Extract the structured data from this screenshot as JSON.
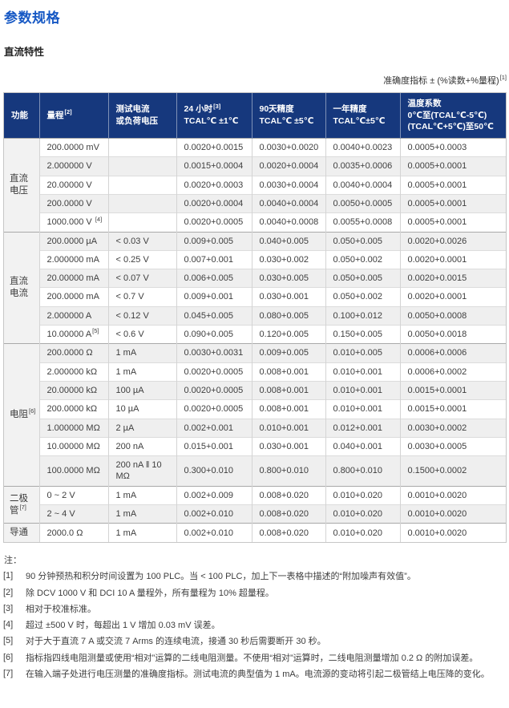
{
  "colors": {
    "title_blue": "#1658c4",
    "table_header_bg": "#16387d",
    "stripe_gray": "#efefef",
    "function_col_bg": "#f2f2f2"
  },
  "page": {
    "title": "参数规格",
    "section_title": "直流特性",
    "accuracy_note": "准确度指标 ± (%读数+%量程)",
    "accuracy_note_sup": "[1]"
  },
  "table": {
    "columns": [
      {
        "id": "function",
        "lines": [
          "功能"
        ],
        "sup": "",
        "supLine": 0
      },
      {
        "id": "range",
        "lines": [
          "量程"
        ],
        "sup": "[2]",
        "supLine": 0
      },
      {
        "id": "test-current",
        "lines": [
          "测试电流",
          "或负荷电压"
        ],
        "sup": "",
        "supLine": 0
      },
      {
        "id": "24h",
        "lines": [
          "24 小时",
          "TCAL℃ ±1℃"
        ],
        "sup": "[3]",
        "supLine": 0
      },
      {
        "id": "90day",
        "lines": [
          "90天精度",
          "TCAL℃ ±5℃"
        ],
        "sup": "",
        "supLine": 0
      },
      {
        "id": "1year",
        "lines": [
          "一年精度",
          "TCAL℃±5℃"
        ],
        "sup": "",
        "supLine": 0
      },
      {
        "id": "temp-coeff",
        "lines": [
          "温度系数",
          "0℃至(TCAL℃-5℃)",
          "(TCAL℃+5℃)至50℃"
        ],
        "sup": "",
        "supLine": 0
      }
    ],
    "groups": [
      {
        "function": "直流\n电压",
        "sup": "",
        "rows": [
          {
            "range": "200.0000 mV",
            "range_sup": "",
            "test": "",
            "h24": "0.0020+0.0015",
            "d90": "0.0030+0.0020",
            "y1": "0.0040+0.0023",
            "tc": "0.0005+0.0003"
          },
          {
            "range": "2.000000 V",
            "range_sup": "",
            "test": "",
            "h24": "0.0015+0.0004",
            "d90": "0.0020+0.0004",
            "y1": "0.0035+0.0006",
            "tc": "0.0005+0.0001"
          },
          {
            "range": "20.00000 V",
            "range_sup": "",
            "test": "",
            "h24": "0.0020+0.0003",
            "d90": "0.0030+0.0004",
            "y1": "0.0040+0.0004",
            "tc": "0.0005+0.0001"
          },
          {
            "range": "200.0000 V",
            "range_sup": "",
            "test": "",
            "h24": "0.0020+0.0004",
            "d90": "0.0040+0.0004",
            "y1": "0.0050+0.0005",
            "tc": "0.0005+0.0001"
          },
          {
            "range": "1000.000 V ",
            "range_sup": "[4]",
            "test": "",
            "h24": "0.0020+0.0005",
            "d90": "0.0040+0.0008",
            "y1": "0.0055+0.0008",
            "tc": "0.0005+0.0001"
          }
        ]
      },
      {
        "function": "直流\n电流",
        "sup": "",
        "rows": [
          {
            "range": "200.0000 µA",
            "range_sup": "",
            "test": "< 0.03 V",
            "h24": "0.009+0.005",
            "d90": "0.040+0.005",
            "y1": "0.050+0.005",
            "tc": "0.0020+0.0026"
          },
          {
            "range": "2.000000 mA",
            "range_sup": "",
            "test": "< 0.25 V",
            "h24": "0.007+0.001",
            "d90": "0.030+0.002",
            "y1": "0.050+0.002",
            "tc": "0.0020+0.0001"
          },
          {
            "range": "20.00000 mA",
            "range_sup": "",
            "test": "< 0.07 V",
            "h24": "0.006+0.005",
            "d90": "0.030+0.005",
            "y1": "0.050+0.005",
            "tc": "0.0020+0.0015"
          },
          {
            "range": "200.0000 mA",
            "range_sup": "",
            "test": "< 0.7 V",
            "h24": "0.009+0.001",
            "d90": "0.030+0.001",
            "y1": "0.050+0.002",
            "tc": "0.0020+0.0001"
          },
          {
            "range": "2.000000 A",
            "range_sup": "",
            "test": "< 0.12 V",
            "h24": "0.045+0.005",
            "d90": "0.080+0.005",
            "y1": "0.100+0.012",
            "tc": "0.0050+0.0008"
          },
          {
            "range": "10.00000 A",
            "range_sup": "[5]",
            "test": "< 0.6 V",
            "h24": "0.090+0.005",
            "d90": "0.120+0.005",
            "y1": "0.150+0.005",
            "tc": "0.0050+0.0018"
          }
        ]
      },
      {
        "function": "电阻",
        "sup": "[6]",
        "rows": [
          {
            "range": "200.0000 Ω",
            "range_sup": "",
            "test": "1 mA",
            "h24": "0.0030+0.0031",
            "d90": "0.009+0.005",
            "y1": "0.010+0.005",
            "tc": "0.0006+0.0006"
          },
          {
            "range": "2.000000 kΩ",
            "range_sup": "",
            "test": "1 mA",
            "h24": "0.0020+0.0005",
            "d90": "0.008+0.001",
            "y1": "0.010+0.001",
            "tc": "0.0006+0.0002"
          },
          {
            "range": "20.00000 kΩ",
            "range_sup": "",
            "test": "100 µA",
            "h24": "0.0020+0.0005",
            "d90": "0.008+0.001",
            "y1": "0.010+0.001",
            "tc": "0.0015+0.0001"
          },
          {
            "range": "200.0000 kΩ",
            "range_sup": "",
            "test": "10 µA",
            "h24": "0.0020+0.0005",
            "d90": "0.008+0.001",
            "y1": "0.010+0.001",
            "tc": "0.0015+0.0001"
          },
          {
            "range": "1.000000 MΩ",
            "range_sup": "",
            "test": "2 µA",
            "h24": "0.002+0.001",
            "d90": "0.010+0.001",
            "y1": "0.012+0.001",
            "tc": "0.0030+0.0002"
          },
          {
            "range": "10.00000 MΩ",
            "range_sup": "",
            "test": "200 nA",
            "h24": "0.015+0.001",
            "d90": "0.030+0.001",
            "y1": "0.040+0.001",
            "tc": "0.0030+0.0005"
          },
          {
            "range": "100.0000 MΩ",
            "range_sup": "",
            "test": "200 nA ‖ 10 MΩ",
            "h24": "0.300+0.010",
            "d90": "0.800+0.010",
            "y1": "0.800+0.010",
            "tc": "0.1500+0.0002"
          }
        ]
      },
      {
        "function": "二极\n管",
        "sup": "[7]",
        "rows": [
          {
            "range": "0 ~ 2 V",
            "range_sup": "",
            "test": "1 mA",
            "h24": "0.002+0.009",
            "d90": "0.008+0.020",
            "y1": "0.010+0.020",
            "tc": "0.0010+0.0020"
          },
          {
            "range": "2 ~ 4 V",
            "range_sup": "",
            "test": "1 mA",
            "h24": "0.002+0.010",
            "d90": "0.008+0.020",
            "y1": "0.010+0.020",
            "tc": "0.0010+0.0020"
          }
        ]
      },
      {
        "function": "导通",
        "sup": "",
        "rows": [
          {
            "range": "2000.0 Ω",
            "range_sup": "",
            "test": "1 mA",
            "h24": "0.002+0.010",
            "d90": "0.008+0.020",
            "y1": "0.010+0.020",
            "tc": "0.0010+0.0020"
          }
        ]
      }
    ]
  },
  "notes": {
    "label": "注：",
    "items": [
      {
        "num": "[1]",
        "text": "90 分钟预热和积分时间设置为 100 PLC。当 < 100 PLC，加上下一表格中描述的“附加噪声有效值”。"
      },
      {
        "num": "[2]",
        "text": "除 DCV 1000 V 和 DCI 10 A 量程外，所有量程为 10% 超量程。"
      },
      {
        "num": "[3]",
        "text": "相对于校准标准。"
      },
      {
        "num": "[4]",
        "text": "超过 ±500 V 时，每超出 1 V 增加 0.03 mV 误差。"
      },
      {
        "num": "[5]",
        "text": "对于大于直流 7 A 或交流 7 Arms 的连续电流，接通 30 秒后需要断开 30 秒。"
      },
      {
        "num": "[6]",
        "text": "指标指四线电阻测量或使用“相对”运算的二线电阻测量。不使用“相对”运算时，二线电阻测量增加 0.2 Ω 的附加误差。"
      },
      {
        "num": "[7]",
        "text": "在输入端子处进行电压测量的准确度指标。测试电流的典型值为 1 mA。电流源的变动将引起二极管结上电压降的变化。"
      }
    ]
  }
}
